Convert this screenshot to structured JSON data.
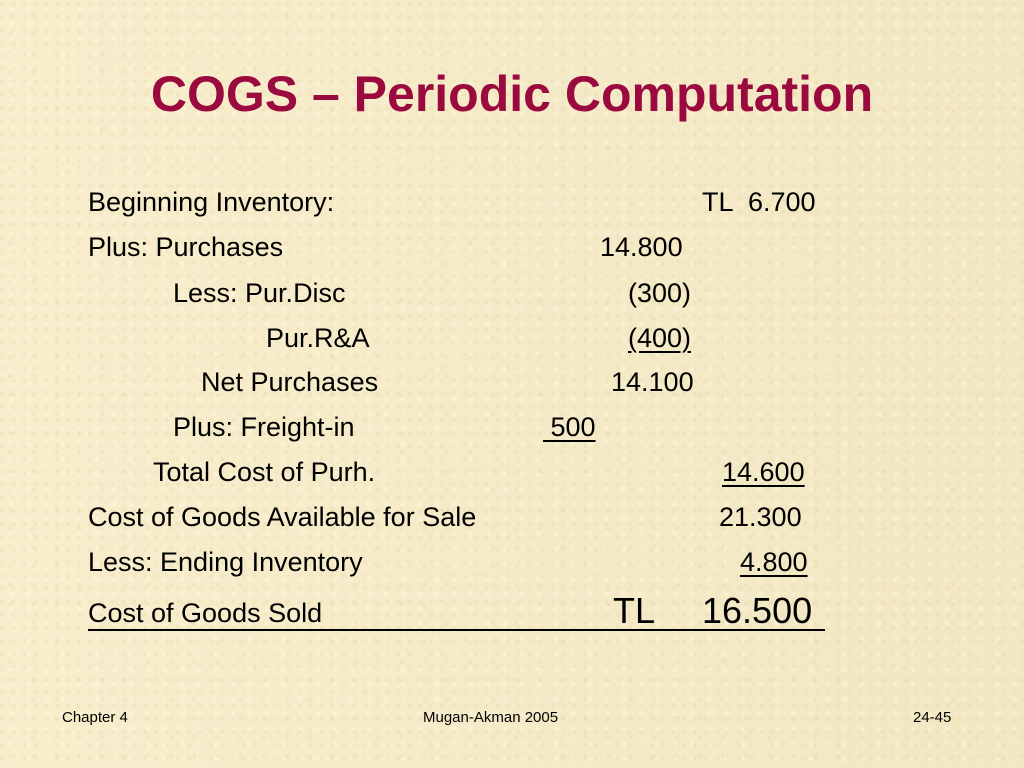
{
  "slide": {
    "title": "COGS – Periodic Computation",
    "rows": {
      "beginning_inventory": {
        "label": "Beginning Inventory:",
        "currency": "TL",
        "amount": "6.700"
      },
      "plus_purchases": {
        "label": "Plus: Purchases",
        "amount": "14.800"
      },
      "less_pur_disc": {
        "label": "Less: Pur.Disc",
        "amount": "(300)"
      },
      "pur_ra": {
        "label": "Pur.R&A",
        "amount": "(400)"
      },
      "net_purchases": {
        "label": "Net Purchases",
        "amount": "14.100"
      },
      "plus_freight_in": {
        "label": "Plus: Freight-in",
        "amount": " 500"
      },
      "total_cost_purh": {
        "label": "Total Cost of Purh.",
        "amount": "14.600"
      },
      "cogs_available": {
        "label": "Cost of Goods Available for Sale",
        "amount": "21.300"
      },
      "less_ending_inventory": {
        "label": "Less: Ending Inventory",
        "amount": "4.800"
      },
      "cost_of_goods_sold": {
        "label": "Cost of Goods Sold",
        "currency": "TL",
        "amount": "16.500"
      }
    }
  },
  "footer": {
    "chapter": "Chapter 4",
    "author": "Mugan-Akman 2005",
    "page": "24-45"
  }
}
